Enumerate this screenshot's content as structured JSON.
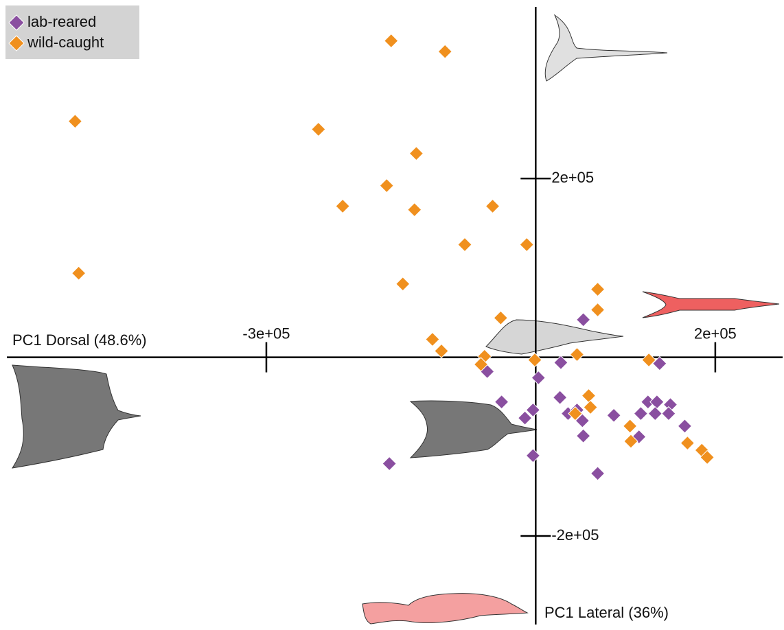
{
  "chart_data": {
    "type": "scatter",
    "xlabel": "PC1 Dorsal (48.6%)",
    "ylabel": "PC1 Lateral (36%)",
    "xlim": [
      -589000,
      275000
    ],
    "ylim": [
      -299000,
      392000
    ],
    "xticks": [
      {
        "value": -300000,
        "label": "-3e+05"
      },
      {
        "value": 200000,
        "label": "2e+05"
      }
    ],
    "yticks": [
      {
        "value": 200000,
        "label": "2e+05"
      },
      {
        "value": -200000,
        "label": "-2e+05"
      }
    ],
    "legend": "upper left",
    "series": [
      {
        "name": "lab-reared",
        "color": "#8a4fa0",
        "x": [
          53000,
          28000,
          138000,
          -54000,
          3000,
          -38000,
          27000,
          -3000,
          -12000,
          36000,
          46000,
          52000,
          87000,
          117000,
          125000,
          135000,
          150000,
          133000,
          148000,
          166000,
          115000,
          53000,
          -3000,
          -163000,
          69000
        ],
        "values": [
          42000,
          -6000,
          -7000,
          -16000,
          -23000,
          -50000,
          -45000,
          -59000,
          -68000,
          -63000,
          -59000,
          -71000,
          -65000,
          -63000,
          -50000,
          -50000,
          -53000,
          -63000,
          -63000,
          -77000,
          -89000,
          -88000,
          -110000,
          -119000,
          -130000
        ]
      },
      {
        "name": "wild-caught",
        "color": "#f0901e",
        "x": [
          -161000,
          -101000,
          -513000,
          -242000,
          -133000,
          -166000,
          -215000,
          -135000,
          -48000,
          -79000,
          -10000,
          -509000,
          -148000,
          69000,
          69000,
          -39000,
          -115000,
          -105000,
          -57000,
          -61000,
          -1000,
          46000,
          126000,
          59000,
          61000,
          44000,
          105000,
          106000,
          169000,
          185000,
          191000
        ],
        "values": [
          354000,
          342000,
          264000,
          255000,
          228000,
          192000,
          169000,
          165000,
          169000,
          126000,
          126000,
          94000,
          82000,
          76000,
          53000,
          44000,
          20000,
          7000,
          1000,
          -8000,
          -3000,
          3000,
          -3000,
          -43000,
          -56000,
          -63000,
          -77000,
          -94000,
          -96000,
          -104000,
          -112000
        ]
      }
    ]
  }
}
